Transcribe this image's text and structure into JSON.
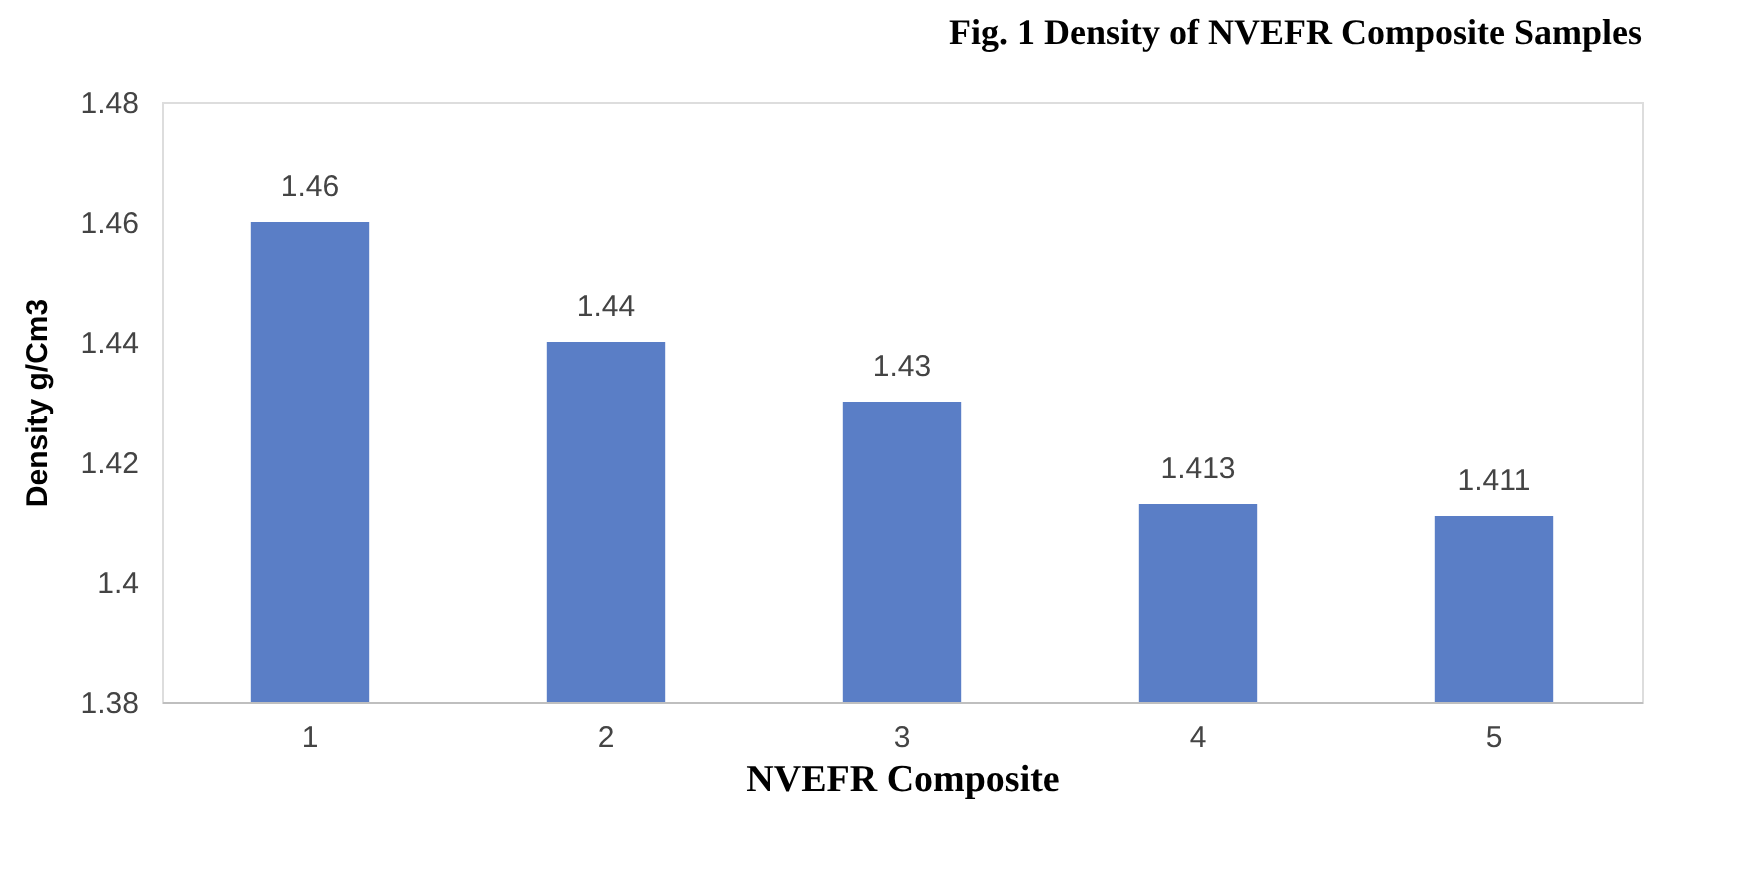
{
  "chart_data": {
    "type": "bar",
    "title": "Fig. 1 Density of NVEFR Composite Samples",
    "xlabel": "NVEFR Composite",
    "ylabel": "Density g/Cm3",
    "categories": [
      "1",
      "2",
      "3",
      "4",
      "5"
    ],
    "values": [
      1.46,
      1.44,
      1.43,
      1.413,
      1.411
    ],
    "color": "#5a7ec6",
    "ylim": [
      1.38,
      1.48
    ],
    "yticks": [
      1.38,
      1.4,
      1.42,
      1.44,
      1.46,
      1.48
    ],
    "grid": false,
    "data_labels": true
  }
}
